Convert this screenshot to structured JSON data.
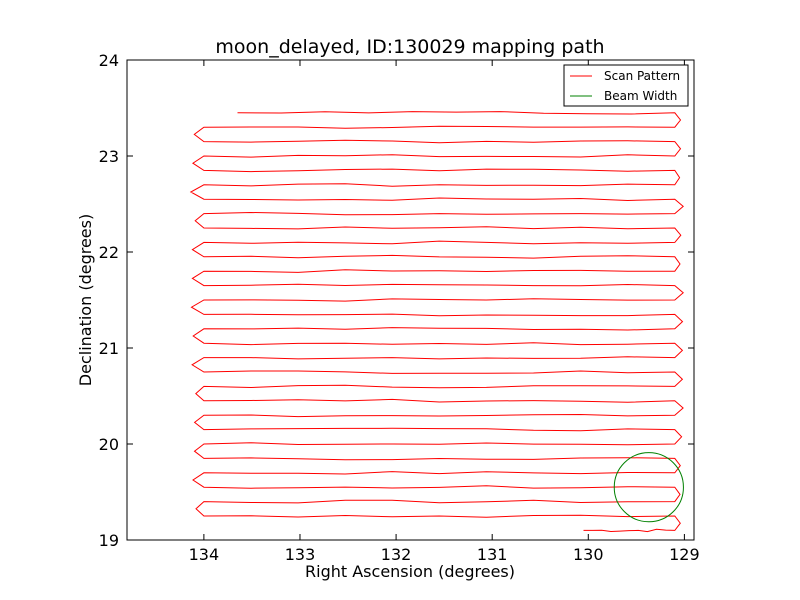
{
  "chart_data": {
    "type": "line",
    "title": "moon_delayed, ID:130029 mapping path",
    "xlabel": "Right Ascension (degrees)",
    "ylabel": "Declination (degrees)",
    "xlim": [
      134.8,
      128.9
    ],
    "ylim": [
      19,
      24
    ],
    "x_ticks": [
      "134",
      "133",
      "132",
      "131",
      "130",
      "129"
    ],
    "y_ticks": [
      "19",
      "20",
      "21",
      "22",
      "23",
      "24"
    ],
    "grid": false,
    "legend_placement": "top-right",
    "series": [
      {
        "name": "Scan Pattern",
        "color": "#ff0000",
        "type": "raster-scan",
        "dec_start": 19.1,
        "dec_end": 23.58,
        "dec_step": 0.15,
        "ra_west": 134.0,
        "ra_east": 129.1,
        "start_ra": 130.05,
        "end_ra": 133.65
      },
      {
        "name": "Beam Width",
        "color": "#008000",
        "type": "circle",
        "center_ra": 129.37,
        "center_dec": 19.55,
        "radius_deg": 0.36
      }
    ]
  }
}
